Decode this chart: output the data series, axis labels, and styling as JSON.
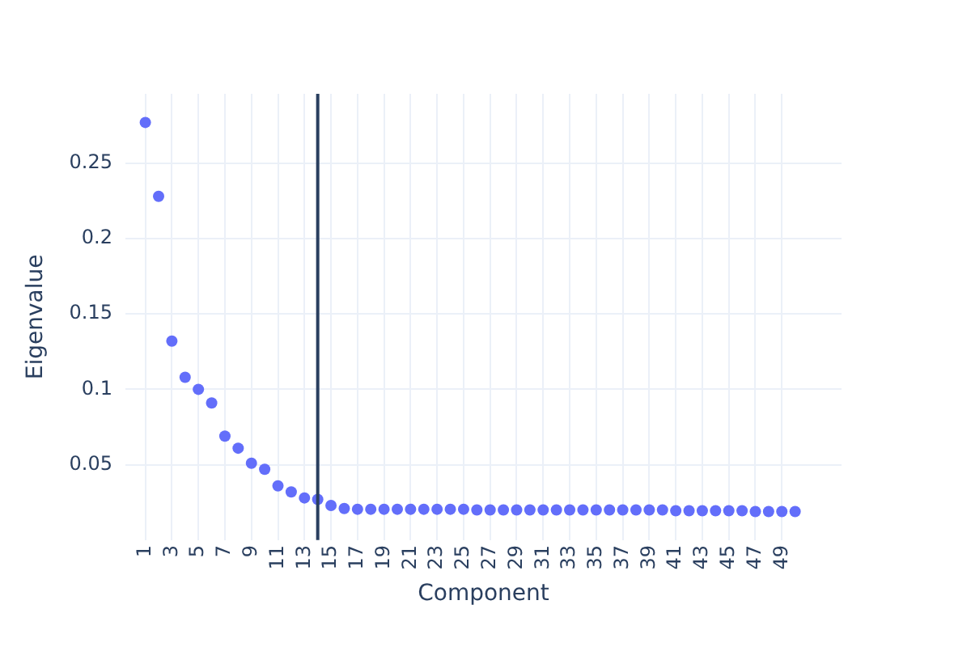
{
  "chart_data": {
    "type": "scatter",
    "xlabel": "Component",
    "ylabel": "Eigenvalue",
    "x": [
      1,
      2,
      3,
      4,
      5,
      6,
      7,
      8,
      9,
      10,
      11,
      12,
      13,
      14,
      15,
      16,
      17,
      18,
      19,
      20,
      21,
      22,
      23,
      24,
      25,
      26,
      27,
      28,
      29,
      30,
      31,
      32,
      33,
      34,
      35,
      36,
      37,
      38,
      39,
      40,
      41,
      42,
      43,
      44,
      45,
      46,
      47,
      48,
      49,
      50
    ],
    "series": [
      {
        "color": "#636efa",
        "values": [
          0.277,
          0.228,
          0.132,
          0.108,
          0.1,
          0.091,
          0.069,
          0.061,
          0.051,
          0.047,
          0.036,
          0.032,
          0.028,
          0.027,
          0.023,
          0.021,
          0.0205,
          0.0205,
          0.0205,
          0.0205,
          0.0205,
          0.0205,
          0.0205,
          0.0205,
          0.0205,
          0.02,
          0.02,
          0.02,
          0.02,
          0.02,
          0.02,
          0.02,
          0.02,
          0.02,
          0.02,
          0.02,
          0.02,
          0.02,
          0.02,
          0.02,
          0.0195,
          0.0195,
          0.0195,
          0.0195,
          0.0195,
          0.0195,
          0.019,
          0.019,
          0.019,
          0.019
        ]
      }
    ],
    "xlim": [
      -0.5,
      53.5
    ],
    "ylim": [
      0,
      0.296
    ],
    "xticks": [
      1,
      3,
      5,
      7,
      9,
      11,
      13,
      15,
      17,
      19,
      21,
      23,
      25,
      27,
      29,
      31,
      33,
      35,
      37,
      39,
      41,
      43,
      45,
      47,
      49
    ],
    "yticks": [
      0.05,
      0.1,
      0.15,
      0.2,
      0.25
    ],
    "ref_lines": [
      {
        "axis": "x",
        "value": 14,
        "color": "#2a3f5f"
      }
    ],
    "grid": true,
    "legend": false,
    "marker": "circle"
  }
}
